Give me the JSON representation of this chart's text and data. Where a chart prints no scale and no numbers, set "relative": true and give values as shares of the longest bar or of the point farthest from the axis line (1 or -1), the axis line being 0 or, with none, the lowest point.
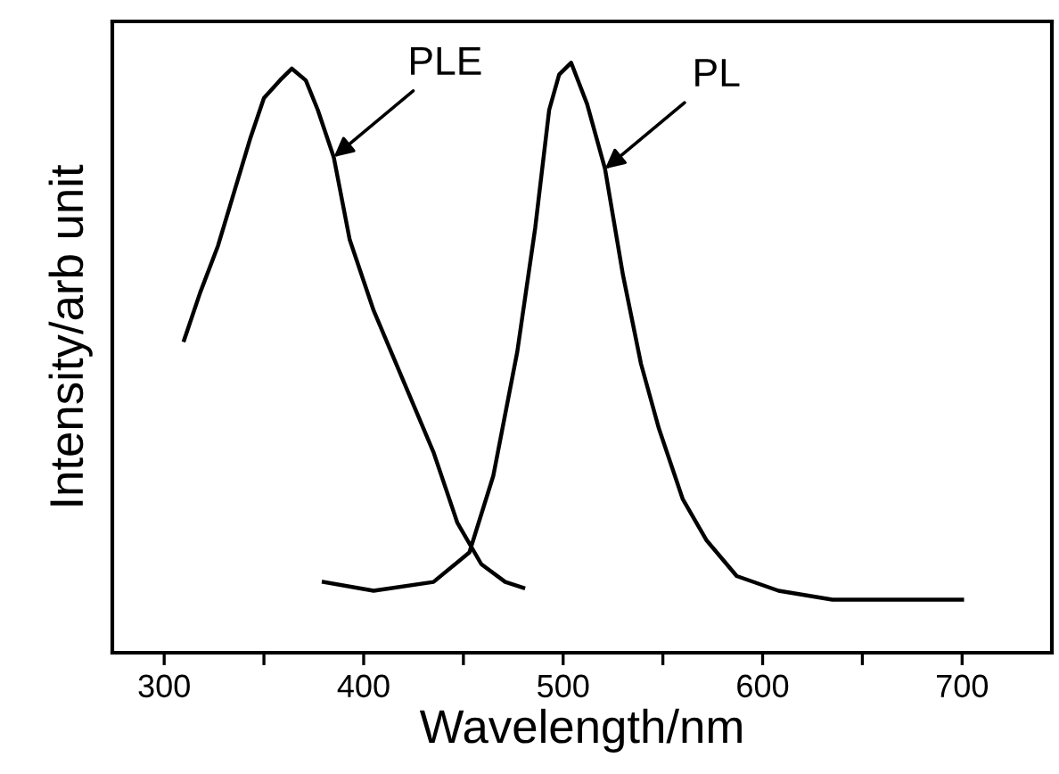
{
  "chart_data": {
    "type": "line",
    "xlabel": "Wavelength/nm",
    "ylabel": "Intensity/arb unit",
    "relative": true,
    "tick_labels": "x",
    "grid": false,
    "legend": false,
    "marker": "none",
    "line_style": "solid",
    "xlim": [
      274,
      745
    ],
    "xticks": [
      300,
      {
        "value": 350,
        "label": null
      },
      400,
      {
        "value": 450,
        "label": null
      },
      500,
      {
        "value": 550,
        "label": null
      },
      600,
      {
        "value": 650,
        "label": null
      },
      700
    ],
    "series": [
      {
        "color": "#000000",
        "x": [
          310,
          318,
          327,
          335,
          343,
          350,
          358,
          364,
          371,
          377,
          385,
          393,
          405,
          420,
          435,
          447,
          459,
          471,
          480
        ],
        "values": [
          0.53,
          0.61,
          0.69,
          0.78,
          0.87,
          0.94,
          0.97,
          0.99,
          0.97,
          0.92,
          0.84,
          0.7,
          0.58,
          0.46,
          0.34,
          0.22,
          0.15,
          0.12,
          0.11
        ]
      },
      {
        "color": "#000000",
        "x": [
          380,
          405,
          435,
          453,
          465,
          477,
          486,
          493,
          498,
          504,
          512,
          521,
          530,
          539,
          548,
          560,
          572,
          587,
          608,
          635,
          700
        ],
        "values": [
          0.12,
          0.105,
          0.12,
          0.17,
          0.3,
          0.51,
          0.72,
          0.92,
          0.98,
          1.0,
          0.93,
          0.82,
          0.64,
          0.49,
          0.38,
          0.26,
          0.19,
          0.13,
          0.105,
          0.09,
          0.09
        ]
      }
    ],
    "annotations": [
      {
        "text": "PLE",
        "x": 385,
        "y": 0.84
      },
      {
        "text": "PL",
        "x": 521,
        "y": 0.82
      }
    ]
  }
}
